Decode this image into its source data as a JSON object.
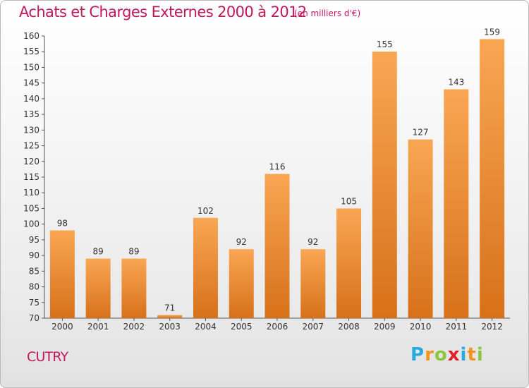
{
  "header": {
    "title": "Achats et Charges Externes 2000 à 2012",
    "subtitle": "(en milliers d'€)"
  },
  "commune": "CUTRY",
  "logo": {
    "text": "Proxiti",
    "letters": [
      {
        "ch": "P",
        "color": "#29abe2"
      },
      {
        "ch": "r",
        "color": "#f7931e"
      },
      {
        "ch": "o",
        "color": "#8cc63f"
      },
      {
        "ch": "x",
        "color": "#e31e24"
      },
      {
        "ch": "i",
        "color": "#29abe2"
      },
      {
        "ch": "t",
        "color": "#f7931e"
      },
      {
        "ch": "i",
        "color": "#8cc63f"
      }
    ]
  },
  "colors": {
    "bar_light": "#f9a653",
    "bar_dark": "#d7711a",
    "title": "#c2185b"
  },
  "chart_data": {
    "type": "bar",
    "title": "Achats et Charges Externes 2000 à 2012",
    "subtitle": "(en milliers d'€)",
    "xlabel": "",
    "ylabel": "",
    "categories": [
      "2000",
      "2001",
      "2002",
      "2003",
      "2004",
      "2005",
      "2006",
      "2007",
      "2008",
      "2009",
      "2010",
      "2011",
      "2012"
    ],
    "values": [
      98,
      89,
      89,
      71,
      102,
      92,
      116,
      92,
      105,
      155,
      127,
      143,
      159
    ],
    "ylim": [
      70,
      160
    ],
    "yticks": [
      70,
      75,
      80,
      85,
      90,
      95,
      100,
      105,
      110,
      115,
      120,
      125,
      130,
      135,
      140,
      145,
      150,
      155,
      160
    ],
    "grid": false,
    "legend": "none"
  }
}
